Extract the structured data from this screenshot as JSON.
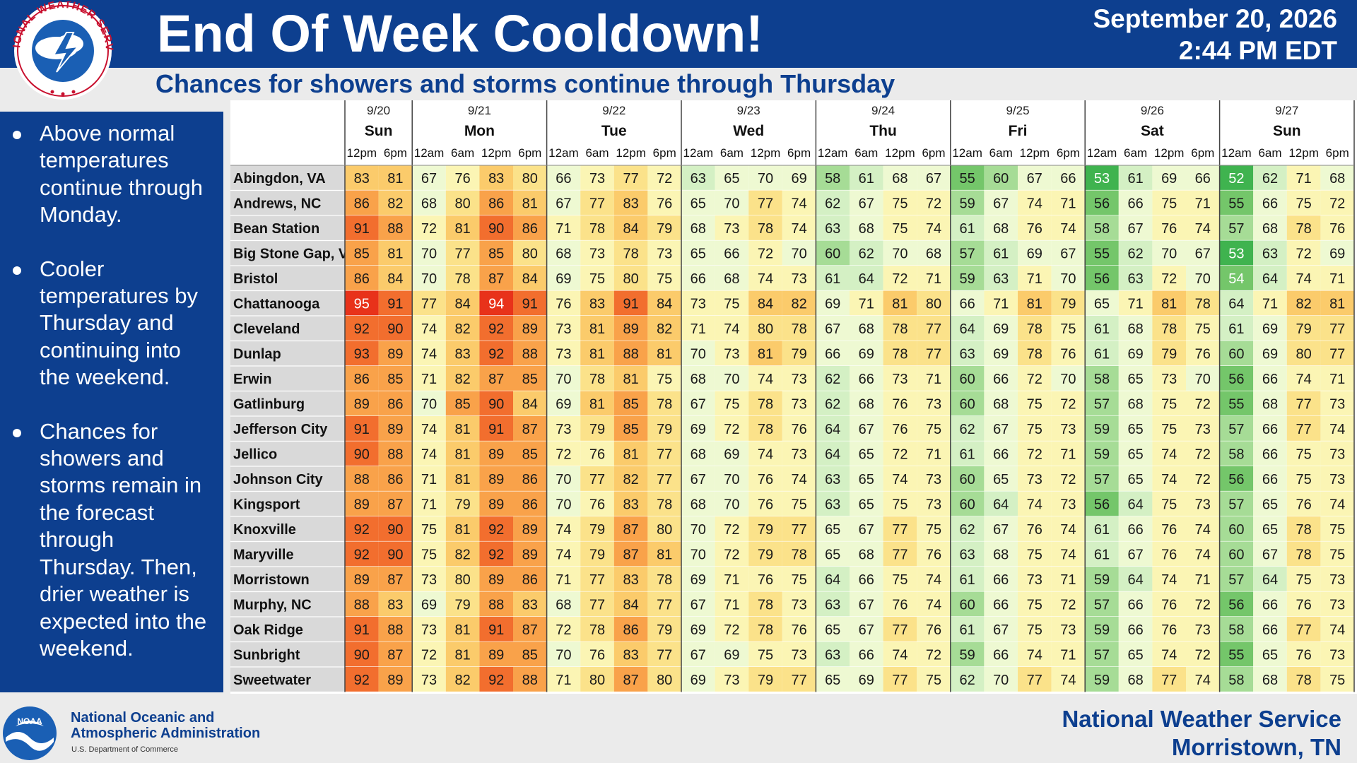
{
  "header": {
    "title": "End Of Week Cooldown!",
    "subtitle": "Chances for showers and storms continue through Thursday",
    "date": "September 20, 2026",
    "time": "2:44 PM EDT",
    "logo_text": "NATIONAL WEATHER SERVICE"
  },
  "sidebar": {
    "bullets": [
      "Above normal temperatures continue through Monday.",
      "Cooler temperatures by Thursday and continuing into the weekend.",
      "Chances for showers and storms remain in the forecast through Thursday. Then, drier weather is expected into the weekend."
    ]
  },
  "footer": {
    "noaa_line1": "National Oceanic and",
    "noaa_line2": "Atmospheric Administration",
    "noaa_dept": "U.S. Department of Commerce",
    "noaa_logo_text": "NOAA",
    "office_line1": "National Weather Service",
    "office_line2": "Morristown, TN"
  },
  "colors": {
    "header_blue": "#0d3f8f",
    "scale": [
      "#3fb34f",
      "#74c66a",
      "#a6dc96",
      "#d4f0c4",
      "#eef9d2",
      "#fbf5b4",
      "#fbe28a",
      "#fbcb6b",
      "#f9a24a",
      "#f26e2e",
      "#e8321a"
    ]
  },
  "chart_data": {
    "type": "table",
    "days": [
      {
        "date": "9/20",
        "day": "Sun",
        "times": [
          "12pm",
          "6pm"
        ]
      },
      {
        "date": "9/21",
        "day": "Mon",
        "times": [
          "12am",
          "6am",
          "12pm",
          "6pm"
        ]
      },
      {
        "date": "9/22",
        "day": "Tue",
        "times": [
          "12am",
          "6am",
          "12pm",
          "6pm"
        ]
      },
      {
        "date": "9/23",
        "day": "Wed",
        "times": [
          "12am",
          "6am",
          "12pm",
          "6pm"
        ]
      },
      {
        "date": "9/24",
        "day": "Thu",
        "times": [
          "12am",
          "6am",
          "12pm",
          "6pm"
        ]
      },
      {
        "date": "9/25",
        "day": "Fri",
        "times": [
          "12am",
          "6am",
          "12pm",
          "6pm"
        ]
      },
      {
        "date": "9/26",
        "day": "Sat",
        "times": [
          "12am",
          "6am",
          "12pm",
          "6pm"
        ]
      },
      {
        "date": "9/27",
        "day": "Sun",
        "times": [
          "12am",
          "6am",
          "12pm",
          "6pm"
        ]
      }
    ],
    "rows": [
      {
        "location": "Abingdon, VA",
        "values": [
          83,
          81,
          67,
          76,
          83,
          80,
          66,
          73,
          77,
          72,
          63,
          65,
          70,
          69,
          58,
          61,
          68,
          67,
          55,
          60,
          67,
          66,
          53,
          61,
          69,
          66,
          52,
          62,
          71,
          68
        ]
      },
      {
        "location": "Andrews, NC",
        "values": [
          86,
          82,
          68,
          80,
          86,
          81,
          67,
          77,
          83,
          76,
          65,
          70,
          77,
          74,
          62,
          67,
          75,
          72,
          59,
          67,
          74,
          71,
          56,
          66,
          75,
          71,
          55,
          66,
          75,
          72
        ]
      },
      {
        "location": "Bean Station",
        "values": [
          91,
          88,
          72,
          81,
          90,
          86,
          71,
          78,
          84,
          79,
          68,
          73,
          78,
          74,
          63,
          68,
          75,
          74,
          61,
          68,
          76,
          74,
          58,
          67,
          76,
          74,
          57,
          68,
          78,
          76
        ]
      },
      {
        "location": "Big Stone Gap, VA",
        "values": [
          85,
          81,
          70,
          77,
          85,
          80,
          68,
          73,
          78,
          73,
          65,
          66,
          72,
          70,
          60,
          62,
          70,
          68,
          57,
          61,
          69,
          67,
          55,
          62,
          70,
          67,
          53,
          63,
          72,
          69
        ]
      },
      {
        "location": "Bristol",
        "values": [
          86,
          84,
          70,
          78,
          87,
          84,
          69,
          75,
          80,
          75,
          66,
          68,
          74,
          73,
          61,
          64,
          72,
          71,
          59,
          63,
          71,
          70,
          56,
          63,
          72,
          70,
          54,
          64,
          74,
          71
        ]
      },
      {
        "location": "Chattanooga",
        "values": [
          95,
          91,
          77,
          84,
          94,
          91,
          76,
          83,
          91,
          84,
          73,
          75,
          84,
          82,
          69,
          71,
          81,
          80,
          66,
          71,
          81,
          79,
          65,
          71,
          81,
          78,
          64,
          71,
          82,
          81
        ]
      },
      {
        "location": "Cleveland",
        "values": [
          92,
          90,
          74,
          82,
          92,
          89,
          73,
          81,
          89,
          82,
          71,
          74,
          80,
          78,
          67,
          68,
          78,
          77,
          64,
          69,
          78,
          75,
          61,
          68,
          78,
          75,
          61,
          69,
          79,
          77
        ]
      },
      {
        "location": "Dunlap",
        "values": [
          93,
          89,
          74,
          83,
          92,
          88,
          73,
          81,
          88,
          81,
          70,
          73,
          81,
          79,
          66,
          69,
          78,
          77,
          63,
          69,
          78,
          76,
          61,
          69,
          79,
          76,
          60,
          69,
          80,
          77
        ]
      },
      {
        "location": "Erwin",
        "values": [
          86,
          85,
          71,
          82,
          87,
          85,
          70,
          78,
          81,
          75,
          68,
          70,
          74,
          73,
          62,
          66,
          73,
          71,
          60,
          66,
          72,
          70,
          58,
          65,
          73,
          70,
          56,
          66,
          74,
          71
        ]
      },
      {
        "location": "Gatlinburg",
        "values": [
          89,
          86,
          70,
          85,
          90,
          84,
          69,
          81,
          85,
          78,
          67,
          75,
          78,
          73,
          62,
          68,
          76,
          73,
          60,
          68,
          75,
          72,
          57,
          68,
          75,
          72,
          55,
          68,
          77,
          73
        ]
      },
      {
        "location": "Jefferson City",
        "values": [
          91,
          89,
          74,
          81,
          91,
          87,
          73,
          79,
          85,
          79,
          69,
          72,
          78,
          76,
          64,
          67,
          76,
          75,
          62,
          67,
          75,
          73,
          59,
          65,
          75,
          73,
          57,
          66,
          77,
          74
        ]
      },
      {
        "location": "Jellico",
        "values": [
          90,
          88,
          74,
          81,
          89,
          85,
          72,
          76,
          81,
          77,
          68,
          69,
          74,
          73,
          64,
          65,
          72,
          71,
          61,
          66,
          72,
          71,
          59,
          65,
          74,
          72,
          58,
          66,
          75,
          73
        ]
      },
      {
        "location": "Johnson City",
        "values": [
          88,
          86,
          71,
          81,
          89,
          86,
          70,
          77,
          82,
          77,
          67,
          70,
          76,
          74,
          63,
          65,
          74,
          73,
          60,
          65,
          73,
          72,
          57,
          65,
          74,
          72,
          56,
          66,
          75,
          73
        ]
      },
      {
        "location": "Kingsport",
        "values": [
          89,
          87,
          71,
          79,
          89,
          86,
          70,
          76,
          83,
          78,
          68,
          70,
          76,
          75,
          63,
          65,
          75,
          73,
          60,
          64,
          74,
          73,
          56,
          64,
          75,
          73,
          57,
          65,
          76,
          74
        ]
      },
      {
        "location": "Knoxville",
        "values": [
          92,
          90,
          75,
          81,
          92,
          89,
          74,
          79,
          87,
          80,
          70,
          72,
          79,
          77,
          65,
          67,
          77,
          75,
          62,
          67,
          76,
          74,
          61,
          66,
          76,
          74,
          60,
          65,
          78,
          75
        ]
      },
      {
        "location": "Maryville",
        "values": [
          92,
          90,
          75,
          82,
          92,
          89,
          74,
          79,
          87,
          81,
          70,
          72,
          79,
          78,
          65,
          68,
          77,
          76,
          63,
          68,
          75,
          74,
          61,
          67,
          76,
          74,
          60,
          67,
          78,
          75
        ]
      },
      {
        "location": "Morristown",
        "values": [
          89,
          87,
          73,
          80,
          89,
          86,
          71,
          77,
          83,
          78,
          69,
          71,
          76,
          75,
          64,
          66,
          75,
          74,
          61,
          66,
          73,
          71,
          59,
          64,
          74,
          71,
          57,
          64,
          75,
          73
        ]
      },
      {
        "location": "Murphy, NC",
        "values": [
          88,
          83,
          69,
          79,
          88,
          83,
          68,
          77,
          84,
          77,
          67,
          71,
          78,
          73,
          63,
          67,
          76,
          74,
          60,
          66,
          75,
          72,
          57,
          66,
          76,
          72,
          56,
          66,
          76,
          73
        ]
      },
      {
        "location": "Oak Ridge",
        "values": [
          91,
          88,
          73,
          81,
          91,
          87,
          72,
          78,
          86,
          79,
          69,
          72,
          78,
          76,
          65,
          67,
          77,
          76,
          61,
          67,
          75,
          73,
          59,
          66,
          76,
          73,
          58,
          66,
          77,
          74
        ]
      },
      {
        "location": "Sunbright",
        "values": [
          90,
          87,
          72,
          81,
          89,
          85,
          70,
          76,
          83,
          77,
          67,
          69,
          75,
          73,
          63,
          66,
          74,
          72,
          59,
          66,
          74,
          71,
          57,
          65,
          74,
          72,
          55,
          65,
          76,
          73
        ]
      },
      {
        "location": "Sweetwater",
        "values": [
          92,
          89,
          73,
          82,
          92,
          88,
          71,
          80,
          87,
          80,
          69,
          73,
          79,
          77,
          65,
          69,
          77,
          75,
          62,
          70,
          77,
          74,
          59,
          68,
          77,
          74,
          58,
          68,
          78,
          75
        ]
      }
    ]
  }
}
